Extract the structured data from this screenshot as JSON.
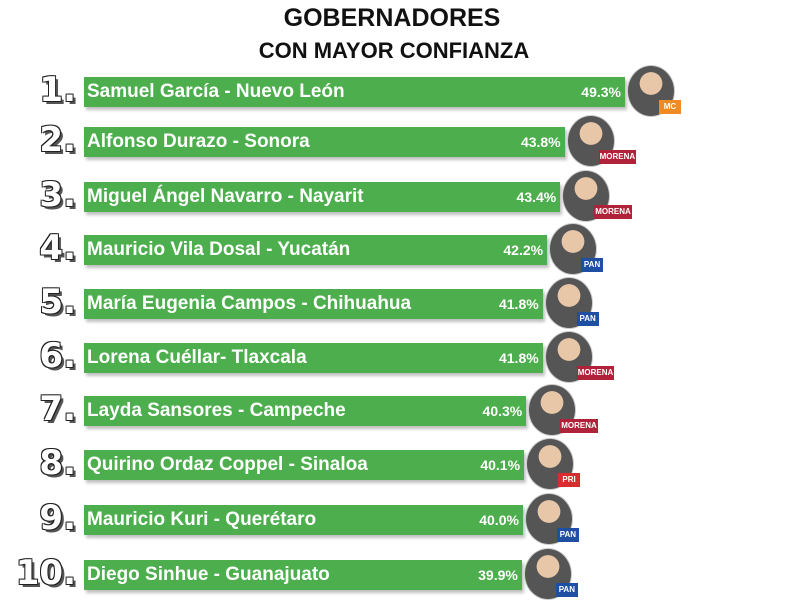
{
  "chart_data": {
    "type": "bar",
    "orientation": "horizontal",
    "title": "GOBERNADORES",
    "subtitle": "CON MAYOR CONFIANZA",
    "ranks": [
      "1.",
      "2.",
      "3.",
      "4.",
      "5.",
      "6.",
      "7.",
      "8.",
      "9.",
      "10."
    ],
    "categories": [
      "Samuel García - Nuevo León",
      "Alfonso Durazo - Sonora",
      "Miguel Ángel Navarro - Nayarit",
      "Mauricio Vila Dosal - Yucatán",
      "María Eugenia Campos - Chihuahua",
      "Lorena Cuéllar- Tlaxcala",
      "Layda Sansores - Campeche",
      "Quirino Ordaz Coppel - Sinaloa",
      "Mauricio Kuri - Querétaro",
      "Diego Sinhue - Guanajuato"
    ],
    "values": [
      49.3,
      43.8,
      43.4,
      42.2,
      41.8,
      41.8,
      40.3,
      40.1,
      40.0,
      39.9
    ],
    "labels": [
      "49.3%",
      "43.8%",
      "43.4%",
      "42.2%",
      "41.8%",
      "41.8%",
      "40.3%",
      "40.1%",
      "40.0%",
      "39.9%"
    ],
    "party_logos": [
      "MC",
      "MORENA",
      "MORENA",
      "PAN",
      "PAN",
      "MORENA",
      "MORENA",
      "PRI",
      "PAN",
      "PAN"
    ],
    "xlim": [
      0,
      49.3
    ],
    "bar_color": "#4cae4c",
    "party_colors": {
      "MC": "#f08a24",
      "MORENA": "#b0223a",
      "PAN": "#1f4fa3",
      "PRI": "#d32f2f"
    },
    "grid": false
  }
}
